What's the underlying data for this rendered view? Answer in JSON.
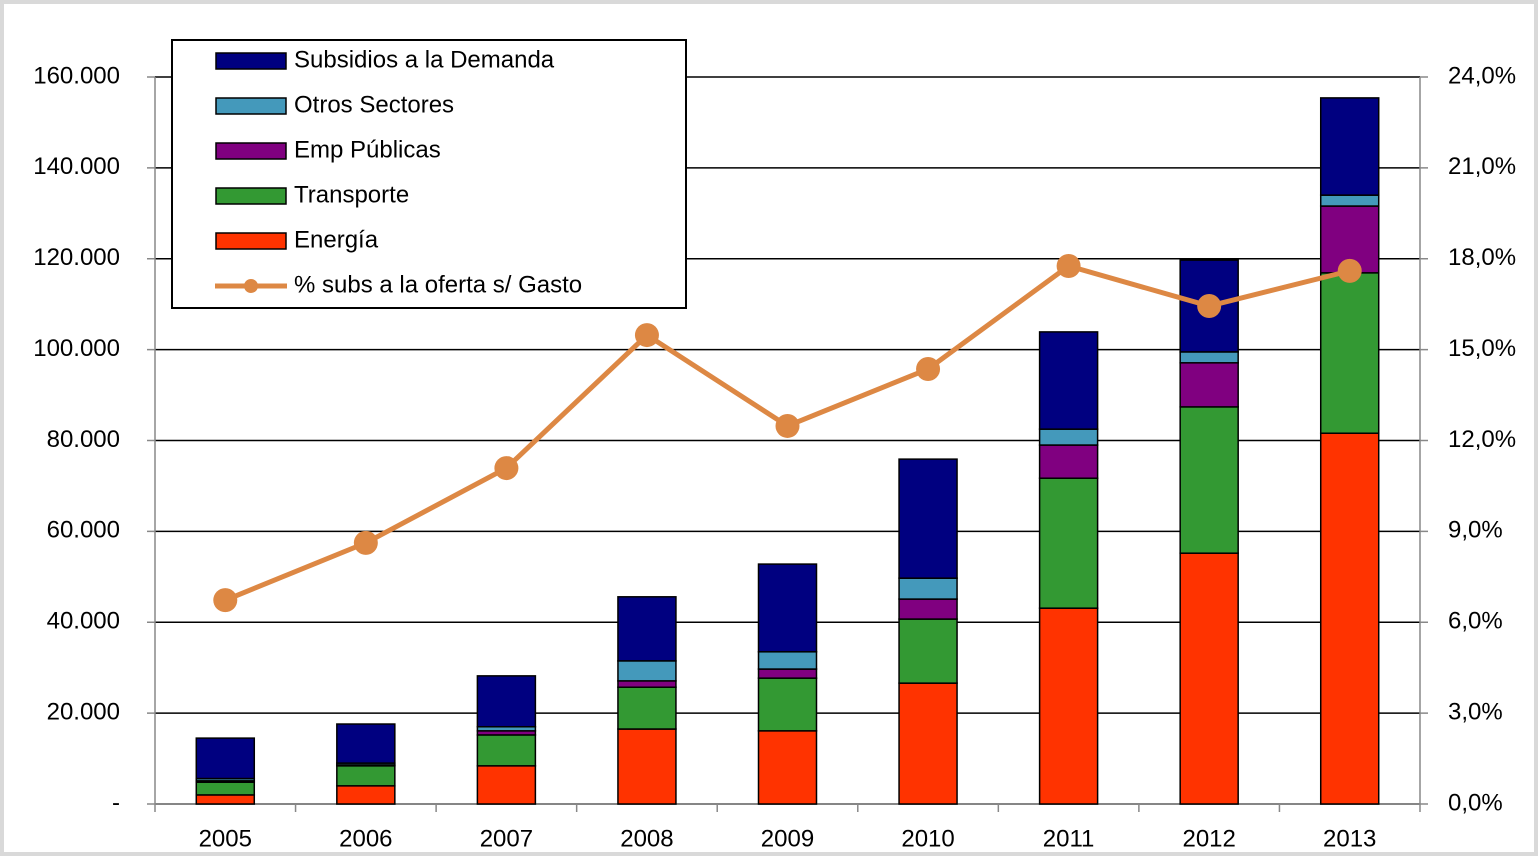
{
  "chart_data": {
    "type": "bar",
    "categories": [
      "2005",
      "2006",
      "2007",
      "2008",
      "2009",
      "2010",
      "2011",
      "2012",
      "2013"
    ],
    "series": [
      {
        "name": "Energía",
        "color": "#ff3300",
        "values": [
          2000,
          4000,
          8400,
          16500,
          16100,
          26600,
          43100,
          55200,
          81600
        ]
      },
      {
        "name": "Transporte",
        "color": "#339933",
        "values": [
          2800,
          4400,
          6800,
          9200,
          11600,
          14100,
          28600,
          32200,
          35300
        ]
      },
      {
        "name": "Emp Públicas",
        "color": "#800080",
        "values": [
          300,
          200,
          900,
          1400,
          2000,
          4400,
          7300,
          9700,
          14700
        ]
      },
      {
        "name": "Otros Sectores",
        "color": "#4499bb",
        "values": [
          500,
          400,
          900,
          4400,
          3800,
          4600,
          3500,
          2400,
          2400
        ]
      },
      {
        "name": "Subsidios a la Demanda",
        "color": "#000080",
        "values": [
          8900,
          8600,
          11200,
          14100,
          19300,
          26200,
          21400,
          20200,
          21400
        ]
      },
      {
        "name": "% subs a la oferta s/ Gasto",
        "color": "#dd8844",
        "axis": "y2",
        "type": "line",
        "values": [
          6.73,
          8.62,
          11.09,
          15.48,
          12.48,
          14.36,
          17.76,
          16.44,
          17.6
        ]
      }
    ],
    "ylim": [
      0,
      160000
    ],
    "yticks": [
      {
        "value": 0,
        "label": "-"
      },
      {
        "value": 20000,
        "label": "20.000"
      },
      {
        "value": 40000,
        "label": "40.000"
      },
      {
        "value": 60000,
        "label": "60.000"
      },
      {
        "value": 80000,
        "label": "80.000"
      },
      {
        "value": 100000,
        "label": "100.000"
      },
      {
        "value": 120000,
        "label": "120.000"
      },
      {
        "value": 140000,
        "label": "140.000"
      },
      {
        "value": 160000,
        "label": "160.000"
      }
    ],
    "y2lim": [
      0,
      24
    ],
    "y2ticks": [
      {
        "value": 0,
        "label": "0,0%"
      },
      {
        "value": 3,
        "label": "3,0%"
      },
      {
        "value": 6,
        "label": "6,0%"
      },
      {
        "value": 9,
        "label": "9,0%"
      },
      {
        "value": 12,
        "label": "12,0%"
      },
      {
        "value": 15,
        "label": "15,0%"
      },
      {
        "value": 18,
        "label": "18,0%"
      },
      {
        "value": 21,
        "label": "21,0%"
      },
      {
        "value": 24,
        "label": "24,0%"
      }
    ],
    "grid": true,
    "legend": "top-left"
  }
}
